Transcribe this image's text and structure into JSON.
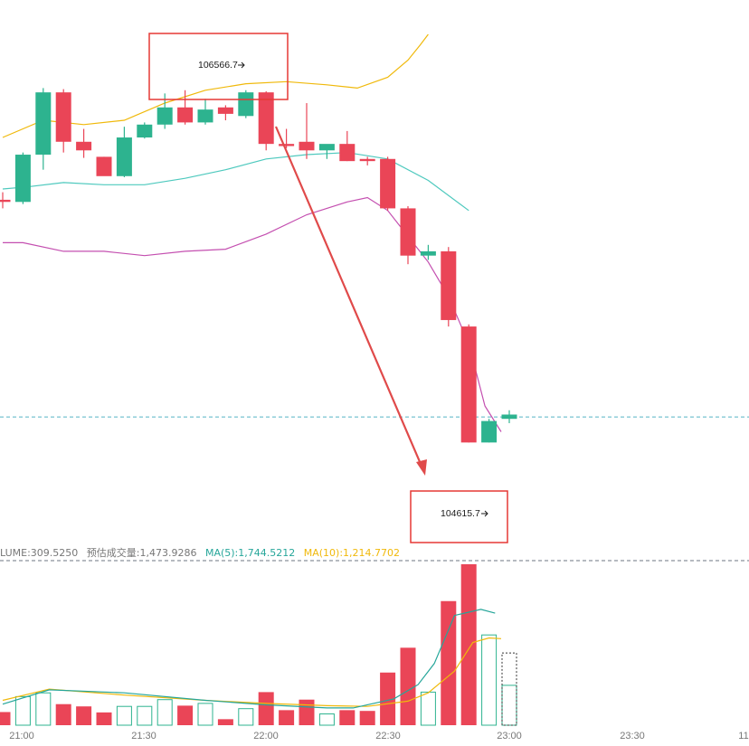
{
  "chart_data": {
    "type": "candlestick",
    "interval_minutes": 10,
    "x_tick_labels": [
      "21:00",
      "21:30",
      "22:00",
      "22:30",
      "23:00",
      "23:30",
      "11"
    ],
    "price_range": [
      104330,
      106940
    ],
    "candles": [
      {
        "time": "20:50",
        "open": 106010,
        "high": 106045,
        "low": 105970,
        "close": 106000
      },
      {
        "time": "21:00",
        "open": 106000,
        "high": 106230,
        "low": 105990,
        "close": 106220
      },
      {
        "time": "21:05",
        "open": 106220,
        "high": 106530,
        "low": 106150,
        "close": 106510
      },
      {
        "time": "21:10",
        "open": 106510,
        "high": 106525,
        "low": 106230,
        "close": 106280
      },
      {
        "time": "21:15",
        "open": 106280,
        "high": 106340,
        "low": 106205,
        "close": 106240
      },
      {
        "time": "21:20",
        "open": 106210,
        "high": 106210,
        "low": 106125,
        "close": 106120
      },
      {
        "time": "21:25",
        "open": 106120,
        "high": 106350,
        "low": 106115,
        "close": 106300
      },
      {
        "time": "21:30",
        "open": 106300,
        "high": 106370,
        "low": 106295,
        "close": 106360
      },
      {
        "time": "21:35",
        "open": 106360,
        "high": 106505,
        "low": 106340,
        "close": 106440
      },
      {
        "time": "21:40",
        "open": 106440,
        "high": 106520,
        "low": 106360,
        "close": 106370
      },
      {
        "time": "21:45",
        "open": 106370,
        "high": 106480,
        "low": 106360,
        "close": 106430
      },
      {
        "time": "21:50",
        "open": 106440,
        "high": 106450,
        "low": 106380,
        "close": 106410
      },
      {
        "time": "21:55",
        "open": 106400,
        "high": 106520,
        "low": 106390,
        "close": 106510
      },
      {
        "time": "22:00",
        "open": 106510,
        "high": 106515,
        "low": 106240,
        "close": 106270
      },
      {
        "time": "22:05",
        "open": 106270,
        "high": 106340,
        "low": 106250,
        "close": 106260
      },
      {
        "time": "22:10",
        "open": 106280,
        "high": 106460,
        "low": 106200,
        "close": 106240
      },
      {
        "time": "22:15",
        "open": 106240,
        "high": 106260,
        "low": 106200,
        "close": 106270
      },
      {
        "time": "22:20",
        "open": 106270,
        "high": 106330,
        "low": 106190,
        "close": 106190
      },
      {
        "time": "22:25",
        "open": 106200,
        "high": 106210,
        "low": 106170,
        "close": 106190
      },
      {
        "time": "22:30",
        "open": 106200,
        "high": 106210,
        "low": 105960,
        "close": 105970
      },
      {
        "time": "22:35",
        "open": 105970,
        "high": 105980,
        "low": 105710,
        "close": 105750
      },
      {
        "time": "22:40",
        "open": 105750,
        "high": 105800,
        "low": 105730,
        "close": 105770
      },
      {
        "time": "22:45",
        "open": 105770,
        "high": 105790,
        "low": 105420,
        "close": 105450
      },
      {
        "time": "22:50",
        "open": 105420,
        "high": 105430,
        "low": 104880,
        "close": 104880
      },
      {
        "time": "22:55",
        "open": 104880,
        "high": 104990,
        "low": 104880,
        "close": 104980
      },
      {
        "time": "23:00",
        "open": 104990,
        "high": 105030,
        "low": 104970,
        "close": 105010
      }
    ],
    "bollinger_bands": {
      "middle": [
        [
          0,
          106060
        ],
        [
          1.2,
          106070
        ],
        [
          3,
          106090
        ],
        [
          5,
          106080
        ],
        [
          7,
          106080
        ],
        [
          9,
          106110
        ],
        [
          11,
          106150
        ],
        [
          13,
          106200
        ],
        [
          15,
          106220
        ],
        [
          17,
          106230
        ],
        [
          19,
          106200
        ],
        [
          21,
          106100
        ],
        [
          23,
          105960
        ]
      ],
      "upper": [
        [
          0,
          106300
        ],
        [
          2,
          106380
        ],
        [
          4,
          106360
        ],
        [
          6,
          106380
        ],
        [
          8,
          106460
        ],
        [
          10,
          106520
        ],
        [
          12,
          106550
        ],
        [
          14,
          106560
        ],
        [
          16,
          106545
        ],
        [
          17.5,
          106530
        ],
        [
          19,
          106580
        ],
        [
          20,
          106660
        ],
        [
          20.6,
          106730
        ],
        [
          21,
          106780
        ]
      ],
      "lower": [
        [
          0,
          105810
        ],
        [
          1,
          105810
        ],
        [
          3,
          105770
        ],
        [
          5,
          105770
        ],
        [
          7,
          105750
        ],
        [
          9,
          105770
        ],
        [
          11,
          105780
        ],
        [
          13,
          105850
        ],
        [
          15,
          105940
        ],
        [
          17,
          106000
        ],
        [
          18,
          106020
        ],
        [
          19,
          105960
        ],
        [
          20,
          105840
        ],
        [
          21,
          105720
        ],
        [
          22,
          105560
        ],
        [
          23,
          105340
        ],
        [
          23.8,
          105050
        ],
        [
          24.6,
          104930
        ]
      ]
    },
    "current_price_line": 104999,
    "annotations": {
      "high_label": "106566.7",
      "low_label": "104615.7",
      "high_marker": 106566.7,
      "low_marker": 104615.7
    },
    "volume": {
      "legend_volume": "LUME:309.5250",
      "legend_estimated": "预估成交量:1,473.9286",
      "legend_ma5": "MA(5):1,744.5212",
      "legend_ma10": "MA(10):1,214.7702",
      "ma5_color": "#26a69a",
      "ma10_color": "#f0b90b",
      "bars": [
        175,
        380,
        430,
        280,
        250,
        170,
        250,
        250,
        340,
        260,
        290,
        80,
        220,
        440,
        200,
        340,
        150,
        200,
        190,
        700,
        1030,
        440,
        1650,
        2140,
        1200,
        530
      ],
      "estimated_bar": 960,
      "ma5": [
        [
          0,
          280
        ],
        [
          2.3,
          470
        ],
        [
          6,
          430
        ],
        [
          10,
          330
        ],
        [
          13,
          270
        ],
        [
          16,
          230
        ],
        [
          17.3,
          230
        ],
        [
          19.3,
          350
        ],
        [
          20.5,
          540
        ],
        [
          21.3,
          820
        ],
        [
          22.3,
          1460
        ],
        [
          23.6,
          1540
        ],
        [
          24.3,
          1490
        ]
      ],
      "ma10": [
        [
          0,
          330
        ],
        [
          2.3,
          480
        ],
        [
          6,
          400
        ],
        [
          10,
          330
        ],
        [
          13,
          290
        ],
        [
          16,
          260
        ],
        [
          18,
          250
        ],
        [
          20,
          320
        ],
        [
          21,
          430
        ],
        [
          22.3,
          720
        ],
        [
          23.2,
          1100
        ],
        [
          24,
          1160
        ],
        [
          24.6,
          1150
        ]
      ],
      "volume_max": 2200
    }
  },
  "colors": {
    "up": "#2db38f",
    "down": "#ea4557",
    "bb_middle": "#4ec9be",
    "bb_upper": "#f0b90b",
    "bb_lower": "#c44fb0",
    "highlight_box": "#e53935",
    "arrow": "#e04a4a",
    "price_dash": "#56b5c5",
    "divider_dash": "#6e7480",
    "axis_text": "#777777",
    "est_bar": "#333333"
  }
}
